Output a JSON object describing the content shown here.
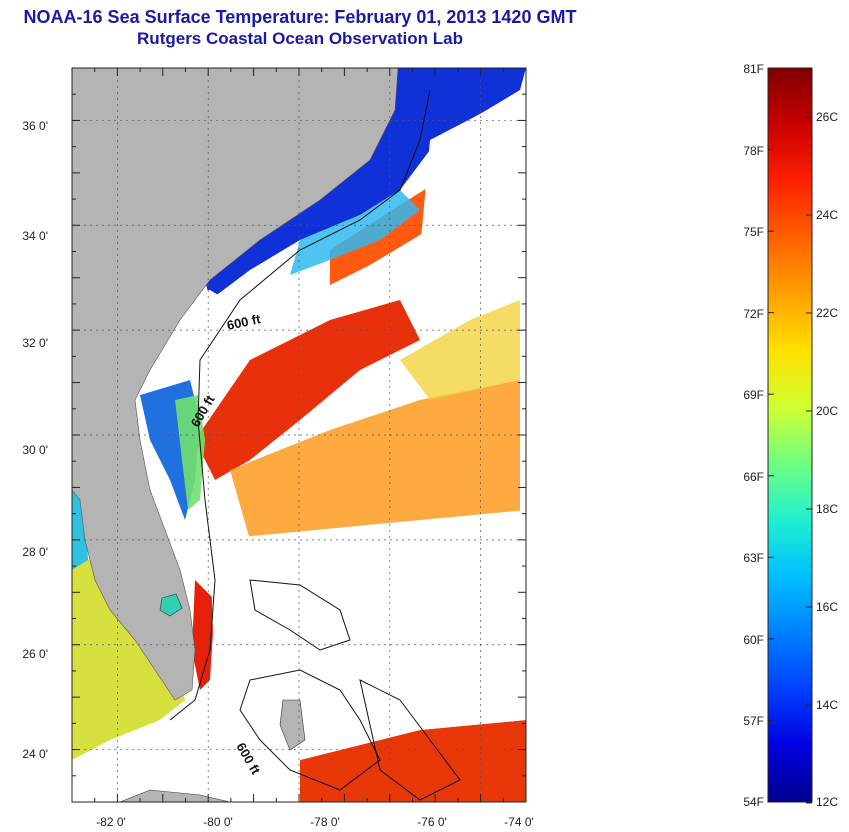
{
  "header": {
    "title": "NOAA-16 Sea Surface Temperature:  February 01, 2013 1420 GMT",
    "subtitle": "Rutgers Coastal Ocean Observation Lab"
  },
  "map": {
    "lon_range": [
      -83,
      -73
    ],
    "lat_range": [
      23,
      37
    ],
    "lon_ticks": [
      "-82 0'",
      "-80 0'",
      "-78 0'",
      "-76 0'",
      "-74 0'"
    ],
    "lat_ticks": [
      "24 0'",
      "26 0'",
      "28 0'",
      "30 0'",
      "32 0'",
      "34 0'",
      "36 0'"
    ],
    "contour_labels": [
      "600 ft",
      "600 ft",
      "600 ft"
    ],
    "land_color": "#b4b4b4",
    "cloud_color": "#ffffff"
  },
  "colorbar": {
    "f_labels": [
      "81F",
      "78F",
      "75F",
      "72F",
      "69F",
      "66F",
      "63F",
      "60F",
      "57F",
      "54F"
    ],
    "c_labels": [
      "26C",
      "24C",
      "22C",
      "20C",
      "18C",
      "16C",
      "14C",
      "12C"
    ],
    "colors": [
      "#800000",
      "#c80000",
      "#ff2000",
      "#ff6000",
      "#ffa000",
      "#ffe000",
      "#d0ff30",
      "#70ff80",
      "#20f0d0",
      "#00c0ff",
      "#0080ff",
      "#0040ff",
      "#0000e0",
      "#000090"
    ]
  }
}
